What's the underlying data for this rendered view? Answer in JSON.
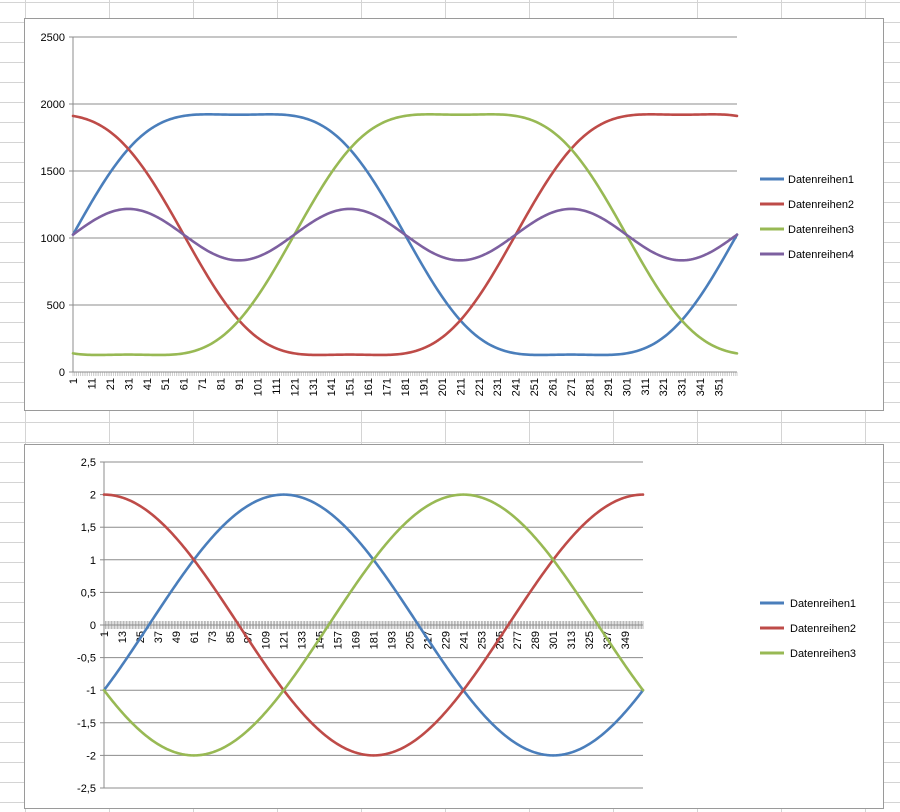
{
  "charts": [
    {
      "type": "line",
      "ylim": [
        0,
        2500
      ],
      "yticks": [
        "0",
        "500",
        "1000",
        "1500",
        "2000",
        "2500"
      ],
      "xtick_labels": [
        "1",
        "11",
        "21",
        "31",
        "41",
        "51",
        "61",
        "71",
        "81",
        "91",
        "101",
        "111",
        "121",
        "131",
        "141",
        "151",
        "161",
        "171",
        "181",
        "191",
        "201",
        "211",
        "221",
        "231",
        "241",
        "251",
        "261",
        "271",
        "281",
        "291",
        "301",
        "311",
        "321",
        "331",
        "341",
        "351"
      ],
      "x_count": 361,
      "grid": true,
      "legend_position": "right",
      "series": [
        {
          "name": "Datenreihen1",
          "color": "#4A7EBB",
          "formula": "1025 + 1023*sin(t) + 1023/8*sin(3t)",
          "values_at": {
            "1": 1025,
            "31": 1800,
            "61": 2040,
            "91": 2020,
            "121": 2045,
            "151": 1820,
            "181": 1025,
            "211": 230,
            "241": 5,
            "271": 30,
            "301": 5,
            "331": 230,
            "361": 1025
          }
        },
        {
          "name": "Datenreihen2",
          "color": "#BE4B48",
          "formula": "1025 + 1023*sin(t+120deg) + 1023/8*sin(3t)",
          "values_at": {
            "1": 2045,
            "31": 1800,
            "61": 1025,
            "91": 230,
            "121": 5,
            "151": 30,
            "181": 5,
            "211": 230,
            "241": 1025,
            "271": 1820,
            "301": 2045,
            "331": 2020,
            "361": 2045
          }
        },
        {
          "name": "Datenreihen3",
          "color": "#98B954",
          "formula": "1025 + 1023*sin(t+240deg) + 1023/8*sin(3t)",
          "values_at": {
            "1": 5,
            "31": 30,
            "61": 5,
            "91": 230,
            "121": 1025,
            "151": 1820,
            "181": 2045,
            "211": 2020,
            "241": 2045,
            "271": 1820,
            "301": 1025,
            "331": 230,
            "361": 5
          }
        },
        {
          "name": "Datenreihen4",
          "color": "#7D60A0",
          "formula": "1025 + 1.5*1023/8*sin(3t)",
          "values_at": {
            "1": 1025,
            "31": 1217,
            "61": 1025,
            "91": 833,
            "121": 1025,
            "151": 1217,
            "181": 1025,
            "211": 833,
            "241": 1025,
            "271": 1217,
            "301": 1025,
            "331": 833,
            "361": 1025
          }
        }
      ]
    },
    {
      "type": "line",
      "ylim": [
        -2.5,
        2.5
      ],
      "yticks": [
        "-2,5",
        "-2",
        "-1,5",
        "-1",
        "-0,5",
        "0",
        "0,5",
        "1",
        "1,5",
        "2",
        "2,5"
      ],
      "xtick_labels": [
        "1",
        "13",
        "25",
        "37",
        "49",
        "61",
        "73",
        "85",
        "97",
        "109",
        "121",
        "133",
        "145",
        "157",
        "169",
        "181",
        "193",
        "205",
        "217",
        "229",
        "241",
        "253",
        "265",
        "277",
        "289",
        "301",
        "313",
        "325",
        "337",
        "349"
      ],
      "x_count": 361,
      "grid": true,
      "legend_position": "right",
      "series": [
        {
          "name": "Datenreihen1",
          "color": "#4A7EBB",
          "formula": "2*sin(t-30deg)",
          "values_at": {
            "1": -1,
            "121": 2,
            "181": 1,
            "241": -1,
            "301": -2,
            "361": -1
          }
        },
        {
          "name": "Datenreihen2",
          "color": "#BE4B48",
          "formula": "2*sin(t+90deg)",
          "values_at": {
            "1": 2,
            "61": 1,
            "121": -1,
            "181": -2,
            "241": -1,
            "301": 1,
            "361": 2
          }
        },
        {
          "name": "Datenreihen3",
          "color": "#98B954",
          "formula": "2*sin(t+210deg)",
          "values_at": {
            "1": -1,
            "61": -2,
            "121": -1,
            "181": 1,
            "241": 2,
            "301": 1,
            "361": -1
          }
        }
      ]
    }
  ]
}
